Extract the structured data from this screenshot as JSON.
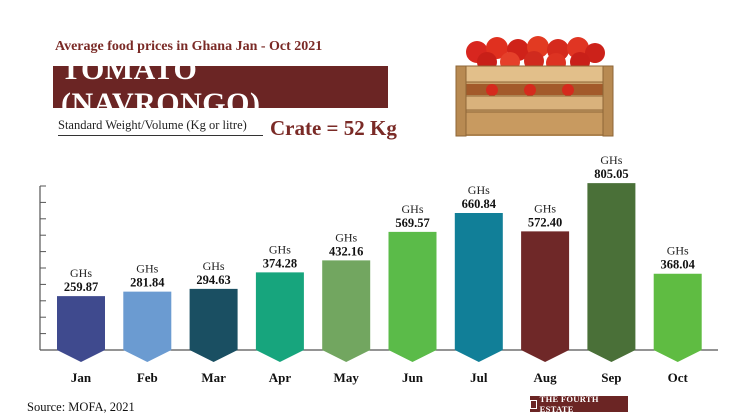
{
  "header": {
    "subtitle": "Average food prices in Ghana Jan - Oct 2021",
    "title": "TOMATO (NAVRONGO)",
    "standard_label": "Standard Weight/Volume (Kg or litre)",
    "crate_text": "Crate = 52 Kg"
  },
  "chart_data": {
    "type": "bar",
    "categories": [
      "Jan",
      "Feb",
      "Mar",
      "Apr",
      "May",
      "Jun",
      "Jul",
      "Aug",
      "Sep",
      "Oct"
    ],
    "values": [
      259.87,
      281.84,
      294.63,
      374.28,
      432.16,
      569.57,
      660.84,
      572.4,
      805.05,
      368.04
    ],
    "value_labels": [
      "259.87",
      "281.84",
      "294.63",
      "374.28",
      "432.16",
      "569.57",
      "660.84",
      "572.40",
      "805.05",
      "368.04"
    ],
    "currency_label": "GHs",
    "colors": [
      "#3f4a8e",
      "#6b9bd1",
      "#1a4f62",
      "#17a57d",
      "#72a660",
      "#5bbb49",
      "#117f98",
      "#6f2828",
      "#4a7038",
      "#5fbc42"
    ],
    "ylim": [
      0,
      820
    ],
    "grid": false
  },
  "footer": {
    "source": "Source: MOFA, 2021",
    "brand": "THE FOURTH ESTATE"
  }
}
